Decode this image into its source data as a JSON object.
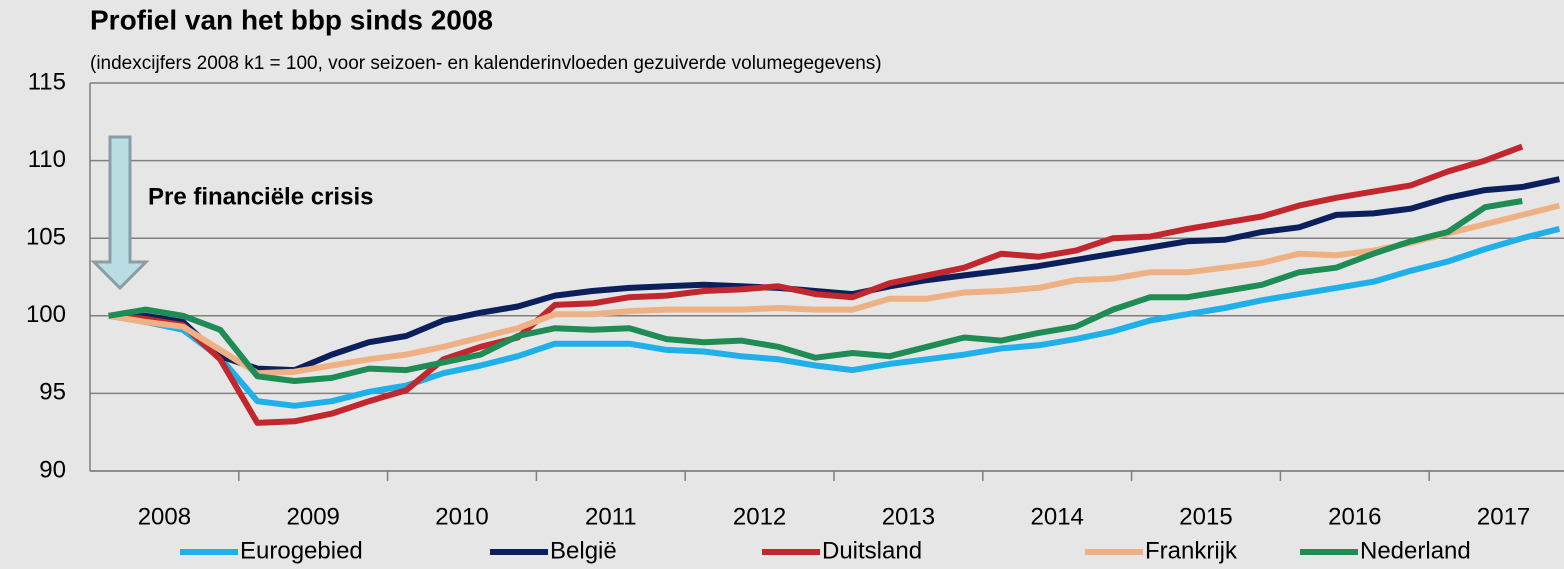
{
  "chart_data": {
    "type": "line",
    "title": "Profiel van het bbp sinds 2008",
    "subtitle": "(indexcijfers 2008 k1 = 100, voor seizoen- en kalenderinvloeden gezuiverde volumegegevens)",
    "annotation": "Pre financiële crisis",
    "categories": [
      "2008",
      null,
      null,
      null,
      "2009",
      null,
      null,
      null,
      "2010",
      null,
      null,
      null,
      "2011",
      null,
      null,
      null,
      "2012",
      null,
      null,
      null,
      "2013",
      null,
      null,
      null,
      "2014",
      null,
      null,
      null,
      "2015",
      null,
      null,
      null,
      "2016",
      null,
      null,
      null,
      "2017",
      null,
      null,
      null
    ],
    "ylim": [
      90,
      115
    ],
    "yticks": [
      90,
      95,
      100,
      105,
      110,
      115
    ],
    "grid": true,
    "legend": "bottom",
    "series": [
      {
        "name": "Eurogebied",
        "color": "#1fb0ea",
        "values": [
          100,
          99.6,
          99.1,
          97.3,
          94.5,
          94.2,
          94.5,
          95.1,
          95.5,
          96.3,
          96.8,
          97.4,
          98.2,
          98.2,
          98.2,
          97.8,
          97.7,
          97.4,
          97.2,
          96.8,
          96.5,
          96.9,
          97.2,
          97.5,
          97.9,
          98.1,
          98.5,
          99.0,
          99.7,
          100.1,
          100.5,
          101.0,
          101.4,
          101.8,
          102.2,
          102.9,
          103.5,
          104.3,
          105.0,
          105.6
        ]
      },
      {
        "name": "België",
        "color": "#0a1f5c",
        "values": [
          100,
          100.0,
          99.6,
          97.4,
          96.6,
          96.5,
          97.5,
          98.3,
          98.7,
          99.7,
          100.2,
          100.6,
          101.3,
          101.6,
          101.8,
          101.9,
          102.0,
          101.9,
          101.8,
          101.6,
          101.4,
          101.9,
          102.3,
          102.6,
          102.9,
          103.2,
          103.6,
          104.0,
          104.4,
          104.8,
          104.9,
          105.4,
          105.7,
          106.5,
          106.6,
          106.9,
          107.6,
          108.1,
          108.3,
          108.8
        ]
      },
      {
        "name": "Duitsland",
        "color": "#c1272d",
        "values": [
          100,
          99.8,
          99.4,
          97.2,
          93.1,
          93.2,
          93.7,
          94.5,
          95.2,
          97.2,
          98.0,
          98.6,
          100.7,
          100.8,
          101.2,
          101.3,
          101.6,
          101.7,
          101.9,
          101.4,
          101.2,
          102.1,
          102.6,
          103.1,
          104.0,
          103.8,
          104.2,
          105.0,
          105.1,
          105.6,
          106.0,
          106.4,
          107.1,
          107.6,
          108.0,
          108.4,
          109.3,
          110.0,
          110.9,
          null
        ]
      },
      {
        "name": "Frankrijk",
        "color": "#eeb183",
        "values": [
          100,
          99.6,
          99.3,
          97.8,
          96.3,
          96.4,
          96.8,
          97.2,
          97.5,
          98.0,
          98.6,
          99.2,
          100.1,
          100.1,
          100.3,
          100.4,
          100.4,
          100.4,
          100.5,
          100.4,
          100.4,
          101.1,
          101.1,
          101.5,
          101.6,
          101.8,
          102.3,
          102.4,
          102.8,
          102.8,
          103.1,
          103.4,
          104.0,
          103.9,
          104.2,
          104.7,
          105.3,
          105.9,
          106.5,
          107.1
        ]
      },
      {
        "name": "Nederland",
        "color": "#1e8c54",
        "values": [
          100,
          100.4,
          100.0,
          99.1,
          96.1,
          95.8,
          96.0,
          96.6,
          96.5,
          97.0,
          97.5,
          98.7,
          99.2,
          99.1,
          99.2,
          98.5,
          98.3,
          98.4,
          98.0,
          97.3,
          97.6,
          97.4,
          98.0,
          98.6,
          98.4,
          98.9,
          99.3,
          100.4,
          101.2,
          101.2,
          101.6,
          102.0,
          102.8,
          103.1,
          104.0,
          104.8,
          105.4,
          107.0,
          107.4,
          null
        ]
      }
    ]
  }
}
